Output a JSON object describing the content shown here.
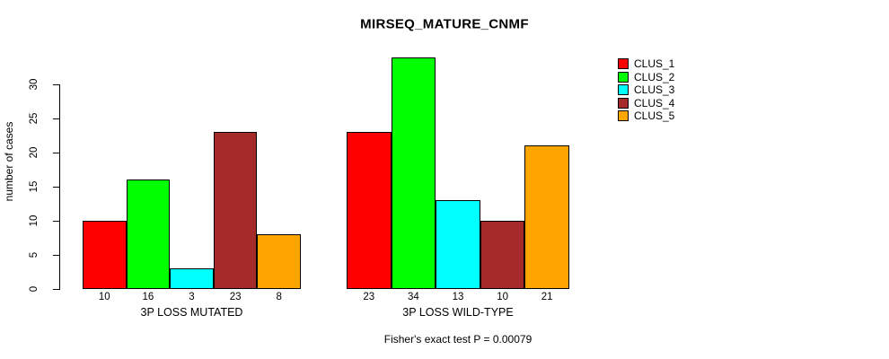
{
  "chart_data": {
    "type": "bar",
    "title": "MIRSEQ_MATURE_CNMF",
    "ylabel": "number of cases",
    "xlabel": "",
    "yticks": [
      0,
      5,
      10,
      15,
      20,
      25,
      30
    ],
    "ylim": [
      0,
      34
    ],
    "grid": false,
    "bar_value_labels": true,
    "legend_position": "right",
    "categories": [
      "3P LOSS MUTATED",
      "3P LOSS WILD-TYPE"
    ],
    "series": [
      {
        "name": "CLUS_1",
        "color": "#FF0000",
        "values": [
          10,
          23
        ]
      },
      {
        "name": "CLUS_2",
        "color": "#00FF00",
        "values": [
          16,
          34
        ]
      },
      {
        "name": "CLUS_3",
        "color": "#00FFFF",
        "values": [
          3,
          13
        ]
      },
      {
        "name": "CLUS_4",
        "color": "#A52A2A",
        "values": [
          23,
          10
        ]
      },
      {
        "name": "CLUS_5",
        "color": "#FFA500",
        "values": [
          8,
          21
        ]
      }
    ],
    "annotation": "Fisher's exact test P = 0.00079",
    "colors": {
      "background": "#FFFFFF",
      "axis": "#000000",
      "text": "#000000"
    }
  }
}
